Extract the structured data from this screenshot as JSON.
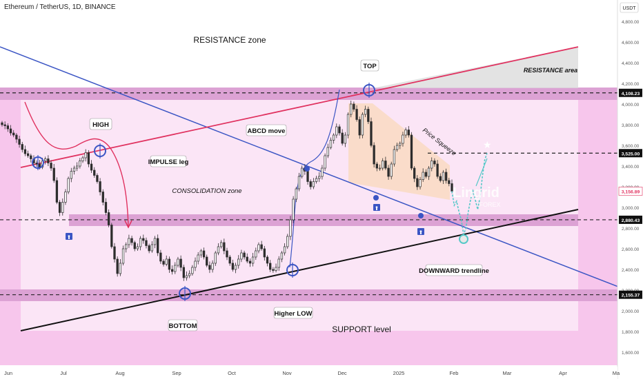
{
  "header": {
    "symbol_title": "Ethereum / TetherUS, 1D, BINANCE",
    "currency_label": "USDT"
  },
  "colors": {
    "zone_fill": "#f3b8e6",
    "band_fill": "#dca2d4",
    "resistance_line": "#e0315f",
    "trend_line": "#3b55c4",
    "support_line": "#111111",
    "candle": "#2d2d2d",
    "arrow_red": "#e0315f",
    "forecast": "#55c8c8",
    "price_tag": "#ffffff"
  },
  "annotations": {
    "resistance_zone": "RESISTANCE zone",
    "resistance_area": "RESISTANCE area",
    "top": "TOP",
    "high": "HIGH",
    "impulse_leg": "IMPULSE leg",
    "abcd_move": "ABCD move",
    "price_squeeze": "Price Squeeze",
    "consolidation_zone": "CONSOLIDATION zone",
    "downward_trendline": "DOWNWARD trendline",
    "bottom": "BOTTOM",
    "higher_low": "Higher LOW",
    "support_level": "SUPPORT level",
    "watermark_brand": "Lingrid",
    "watermark_sub": "FOREX"
  },
  "chart_data": {
    "type": "candlestick",
    "title": "Ethereum / TetherUS, 1D, BINANCE",
    "y_axis_unit": "USDT",
    "y_ticks": [
      "1,600.00",
      "1,800.00",
      "2,000.00",
      "2,200.00",
      "2,400.00",
      "2,600.00",
      "2,800.00",
      "3,000.00",
      "3,200.00",
      "3,400.00",
      "3,600.00",
      "3,800.00",
      "4,000.00",
      "4,200.00",
      "4,400.00",
      "4,600.00",
      "4,800.00"
    ],
    "x_ticks": [
      "Jun",
      "Jul",
      "Aug",
      "Sep",
      "Oct",
      "Nov",
      "Dec",
      "2025",
      "Feb",
      "Mar",
      "Apr",
      "Ma"
    ],
    "price_levels": [
      {
        "label": "4,108.23",
        "value": 4108.23
      },
      {
        "label": "3,525.00",
        "value": 3525.0
      },
      {
        "label": "3,156.89",
        "value": 3156.89,
        "current": true
      },
      {
        "label": "2,880.43",
        "value": 2880.43
      },
      {
        "label": "2,155.37",
        "value": 2155.37
      }
    ],
    "closes": [
      3800,
      3790,
      3760,
      3720,
      3700,
      3660,
      3610,
      3560,
      3520,
      3500,
      3470,
      3430,
      3420,
      3390,
      3450,
      3470,
      3430,
      3380,
      3260,
      3050,
      2950,
      3050,
      3150,
      3280,
      3350,
      3380,
      3400,
      3450,
      3480,
      3530,
      3420,
      3360,
      3310,
      3250,
      3150,
      3050,
      2950,
      2830,
      2620,
      2500,
      2360,
      2460,
      2600,
      2640,
      2700,
      2660,
      2600,
      2620,
      2700,
      2680,
      2630,
      2580,
      2640,
      2700,
      2560,
      2480,
      2450,
      2500,
      2400,
      2380,
      2440,
      2500,
      2420,
      2320,
      2340,
      2360,
      2420,
      2480,
      2540,
      2580,
      2520,
      2440,
      2400,
      2460,
      2560,
      2620,
      2660,
      2580,
      2520,
      2460,
      2400,
      2440,
      2500,
      2560,
      2520,
      2480,
      2460,
      2520,
      2580,
      2640,
      2600,
      2520,
      2460,
      2400,
      2390,
      2420,
      2500,
      2560,
      2620,
      2720,
      2880,
      3080,
      3180,
      3300,
      3380,
      3350,
      3250,
      3200,
      3250,
      3280,
      3300,
      3380,
      3500,
      3580,
      3650,
      3700,
      3780,
      3720,
      3620,
      3700,
      3900,
      4000,
      3950,
      3850,
      3700,
      3900,
      3950,
      3830,
      3600,
      3420,
      3380,
      3380,
      3450,
      3380,
      3300,
      3420,
      3560,
      3600,
      3620,
      3700,
      3750,
      3700,
      3380,
      3280,
      3200,
      3270,
      3340,
      3300,
      3380,
      3450,
      3420,
      3300,
      3260,
      3340,
      3260,
      3230,
      3156.89
    ],
    "forecast_path": [
      3156.89,
      3020,
      3060,
      2960,
      2880,
      2740,
      2800,
      2960,
      3080,
      3160,
      3070,
      2980,
      3100,
      3300,
      3460,
      3525
    ],
    "x_dates_note": "daily candles Jun 2024 - Feb 2025"
  }
}
